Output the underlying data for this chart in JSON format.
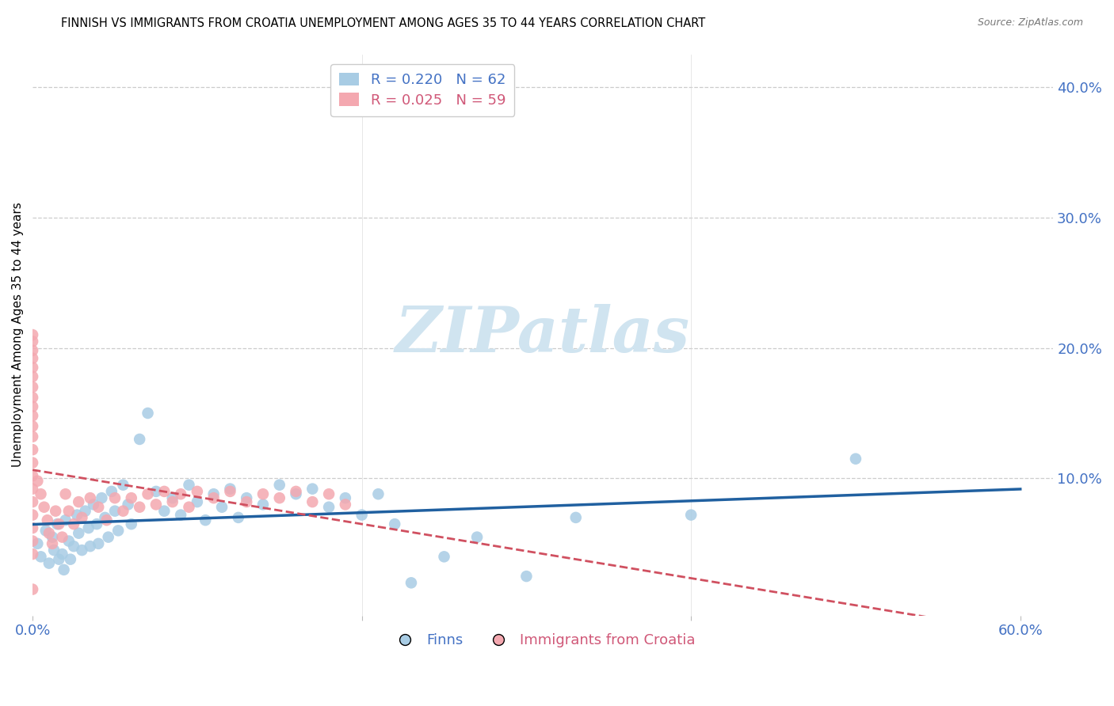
{
  "title": "FINNISH VS IMMIGRANTS FROM CROATIA UNEMPLOYMENT AMONG AGES 35 TO 44 YEARS CORRELATION CHART",
  "source": "Source: ZipAtlas.com",
  "ylabel": "Unemployment Among Ages 35 to 44 years",
  "right_yticks": [
    "40.0%",
    "30.0%",
    "20.0%",
    "10.0%"
  ],
  "right_ytick_vals": [
    0.4,
    0.3,
    0.2,
    0.1
  ],
  "xlim": [
    0.0,
    0.62
  ],
  "ylim": [
    -0.005,
    0.425
  ],
  "legend_r_finns": "R = 0.220",
  "legend_n_finns": "N = 62",
  "legend_r_croatia": "R = 0.025",
  "legend_n_croatia": "N = 59",
  "finns_color": "#a8cce4",
  "croatia_color": "#f4a8b0",
  "finns_line_color": "#2060a0",
  "croatia_line_color": "#d05060",
  "legend_text_blue": "#4472c4",
  "legend_text_pink": "#d05878",
  "axis_label_color": "#4472c4",
  "watermark_color": "#d0e4f0",
  "finns_x": [
    0.003,
    0.005,
    0.008,
    0.01,
    0.012,
    0.013,
    0.015,
    0.016,
    0.018,
    0.019,
    0.02,
    0.022,
    0.023,
    0.025,
    0.027,
    0.028,
    0.03,
    0.032,
    0.034,
    0.035,
    0.037,
    0.039,
    0.04,
    0.042,
    0.044,
    0.046,
    0.048,
    0.05,
    0.052,
    0.055,
    0.058,
    0.06,
    0.065,
    0.07,
    0.075,
    0.08,
    0.085,
    0.09,
    0.095,
    0.1,
    0.105,
    0.11,
    0.115,
    0.12,
    0.125,
    0.13,
    0.14,
    0.15,
    0.16,
    0.17,
    0.18,
    0.19,
    0.2,
    0.21,
    0.22,
    0.23,
    0.25,
    0.27,
    0.3,
    0.33,
    0.4,
    0.5
  ],
  "finns_y": [
    0.05,
    0.04,
    0.06,
    0.035,
    0.055,
    0.045,
    0.065,
    0.038,
    0.042,
    0.03,
    0.068,
    0.052,
    0.038,
    0.048,
    0.072,
    0.058,
    0.045,
    0.075,
    0.062,
    0.048,
    0.08,
    0.065,
    0.05,
    0.085,
    0.07,
    0.055,
    0.09,
    0.075,
    0.06,
    0.095,
    0.08,
    0.065,
    0.13,
    0.15,
    0.09,
    0.075,
    0.085,
    0.072,
    0.095,
    0.082,
    0.068,
    0.088,
    0.078,
    0.092,
    0.07,
    0.085,
    0.08,
    0.095,
    0.088,
    0.092,
    0.078,
    0.085,
    0.072,
    0.088,
    0.065,
    0.02,
    0.04,
    0.055,
    0.025,
    0.07,
    0.072,
    0.115
  ],
  "croatia_x": [
    0.0,
    0.0,
    0.0,
    0.0,
    0.0,
    0.0,
    0.0,
    0.0,
    0.0,
    0.0,
    0.0,
    0.0,
    0.0,
    0.0,
    0.0,
    0.0,
    0.0,
    0.0,
    0.0,
    0.0,
    0.0,
    0.0,
    0.003,
    0.005,
    0.007,
    0.009,
    0.01,
    0.012,
    0.014,
    0.016,
    0.018,
    0.02,
    0.022,
    0.025,
    0.028,
    0.03,
    0.035,
    0.04,
    0.045,
    0.05,
    0.055,
    0.06,
    0.065,
    0.07,
    0.075,
    0.08,
    0.085,
    0.09,
    0.095,
    0.1,
    0.11,
    0.12,
    0.13,
    0.14,
    0.15,
    0.16,
    0.17,
    0.18,
    0.19
  ],
  "croatia_y": [
    0.21,
    0.205,
    0.198,
    0.192,
    0.185,
    0.178,
    0.17,
    0.162,
    0.155,
    0.148,
    0.14,
    0.132,
    0.122,
    0.112,
    0.102,
    0.092,
    0.082,
    0.072,
    0.062,
    0.052,
    0.042,
    0.015,
    0.098,
    0.088,
    0.078,
    0.068,
    0.058,
    0.05,
    0.075,
    0.065,
    0.055,
    0.088,
    0.075,
    0.065,
    0.082,
    0.07,
    0.085,
    0.078,
    0.068,
    0.085,
    0.075,
    0.085,
    0.078,
    0.088,
    0.08,
    0.09,
    0.082,
    0.088,
    0.078,
    0.09,
    0.085,
    0.09,
    0.082,
    0.088,
    0.085,
    0.09,
    0.082,
    0.088,
    0.08
  ]
}
